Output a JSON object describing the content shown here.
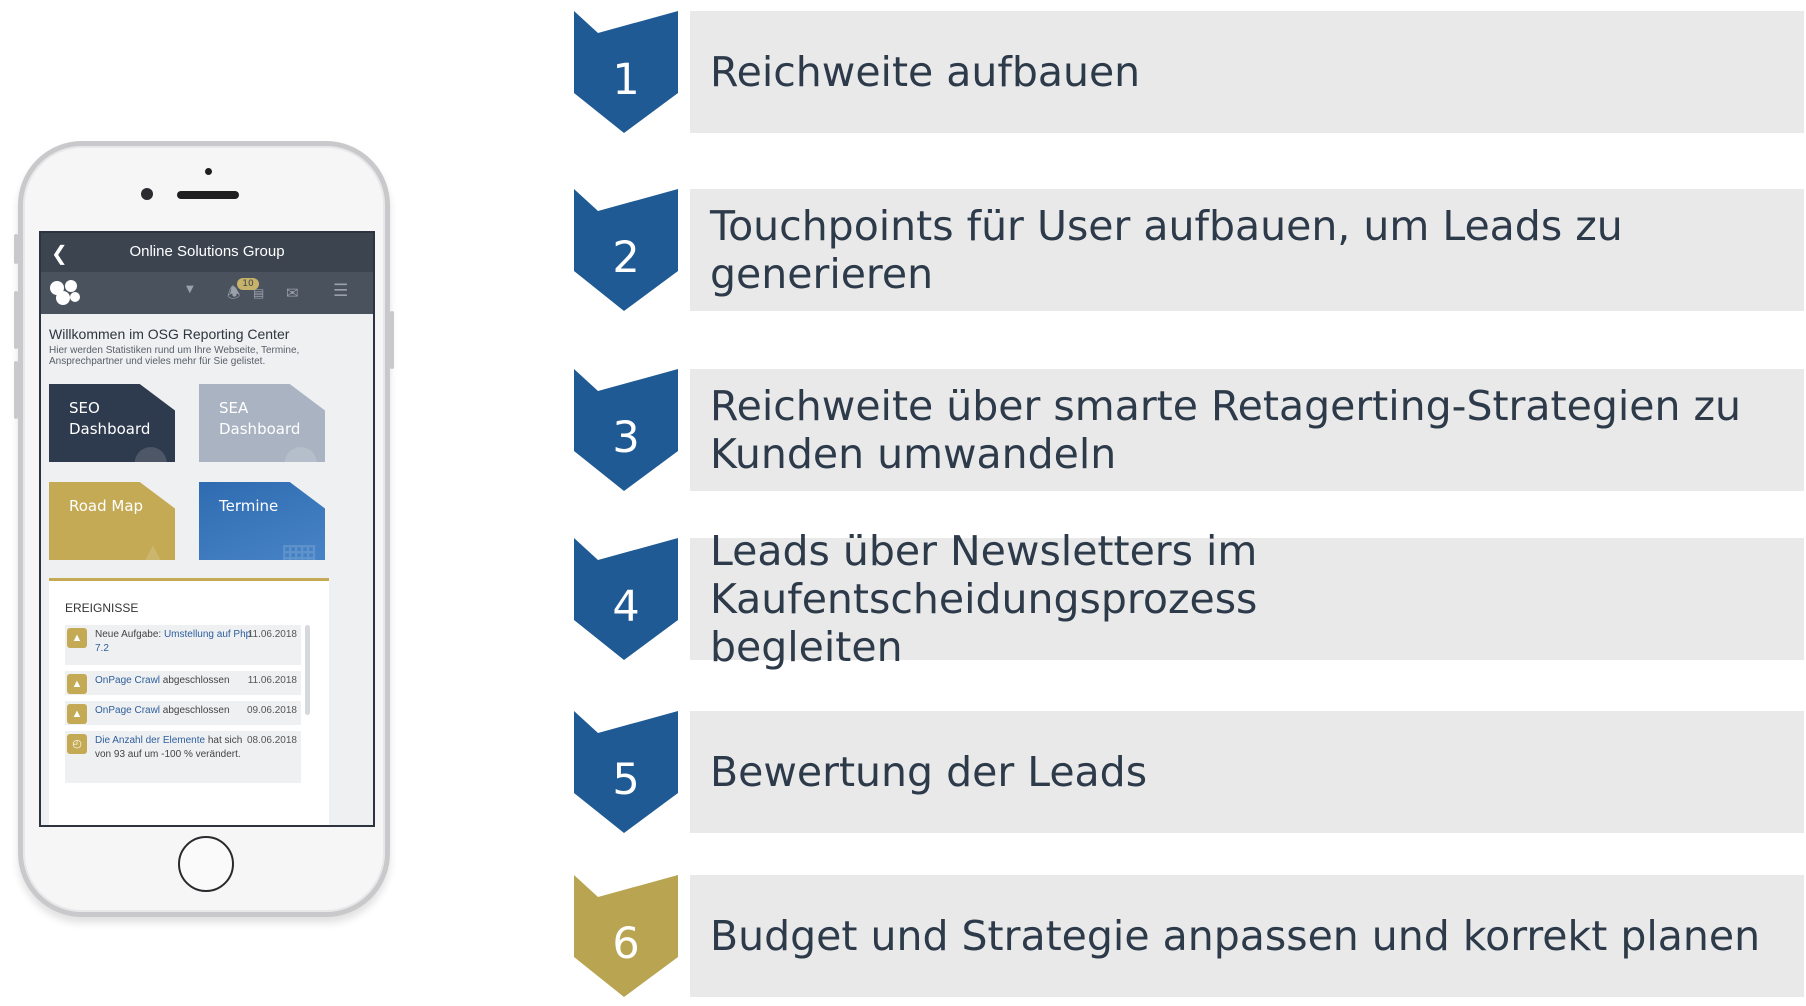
{
  "phone": {
    "app_title": "Online Solutions Group",
    "badge_count": "10",
    "welcome_title": "Willkommen im OSG Reporting Center",
    "welcome_text": "Hier werden Statistiken rund um Ihre Webseite, Termine, Ansprechpartner und vieles mehr für Sie gelistet.",
    "tiles": [
      {
        "label": "SEO\nDashboard"
      },
      {
        "label": "SEA\nDashboard"
      },
      {
        "label": "Road Map"
      },
      {
        "label": "Termine"
      }
    ],
    "events_heading": "EREIGNISSE",
    "events": [
      {
        "text_prefix": "Neue Aufgabe: ",
        "link": "Umstellung auf Php 7.2",
        "text_suffix": "",
        "date": "11.06.2018"
      },
      {
        "text_prefix": "",
        "link": "OnPage Crawl",
        "text_suffix": " abgeschlossen",
        "date": "11.06.2018"
      },
      {
        "text_prefix": "",
        "link": "OnPage Crawl",
        "text_suffix": " abgeschlossen",
        "date": "09.06.2018"
      },
      {
        "text_prefix": "",
        "link": "Die Anzahl der Elemente",
        "text_suffix": " hat sich von 93 auf um -100 % verändert.",
        "date": "08.06.2018"
      }
    ]
  },
  "steps": [
    {
      "number": "1",
      "text": "Reichweite aufbauen",
      "color": "#1f5a94"
    },
    {
      "number": "2",
      "text": "Touchpoints für User aufbauen, um Leads zu generieren",
      "color": "#1f5a94"
    },
    {
      "number": "3",
      "text": "Reichweite über smarte Retagerting-Strategien zu\nKunden umwandeln",
      "color": "#1f5a94"
    },
    {
      "number": "4",
      "text": "Leads über Newsletters im Kaufentscheidungsprozess\nbegleiten",
      "color": "#1f5a94"
    },
    {
      "number": "5",
      "text": "Bewertung der Leads",
      "color": "#1f5a94"
    },
    {
      "number": "6",
      "text": "Budget und Strategie anpassen und korrekt planen",
      "color": "#b8a451"
    }
  ]
}
